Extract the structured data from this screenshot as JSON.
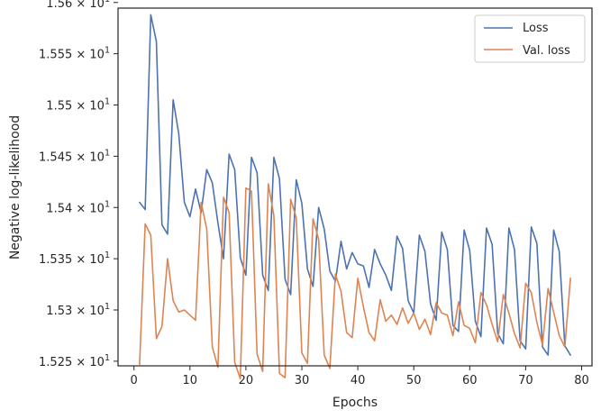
{
  "chart_data": {
    "type": "line",
    "xlabel": "Epochs",
    "ylabel": "Negative log-likelihood",
    "xlim": [
      -2.85,
      81.85
    ],
    "ylim": [
      15.2455,
      15.5945
    ],
    "x_ticks": [
      0,
      10,
      20,
      30,
      40,
      50,
      60,
      70,
      80
    ],
    "x_tick_labels": [
      "0",
      "10",
      "20",
      "30",
      "40",
      "50",
      "60",
      "70",
      "80"
    ],
    "y_ticks": [
      15.25,
      15.3,
      15.35,
      15.4,
      15.45,
      15.5,
      15.55,
      15.6
    ],
    "y_tick_mantissas": [
      "1.525",
      "1.53",
      "1.535",
      "1.54",
      "1.545",
      "1.55",
      "1.555",
      "1.56"
    ],
    "y_tick_base": "10",
    "y_tick_exponent": "1",
    "grid": false,
    "legend_position": "top-right",
    "x": [
      1,
      2,
      3,
      4,
      5,
      6,
      7,
      8,
      9,
      10,
      11,
      12,
      13,
      14,
      15,
      16,
      17,
      18,
      19,
      20,
      21,
      22,
      23,
      24,
      25,
      26,
      27,
      28,
      29,
      30,
      31,
      32,
      33,
      34,
      35,
      36,
      37,
      38,
      39,
      40,
      41,
      42,
      43,
      44,
      45,
      46,
      47,
      48,
      49,
      50,
      51,
      52,
      53,
      54,
      55,
      56,
      57,
      58,
      59,
      60,
      61,
      62,
      63,
      64,
      65,
      66,
      67,
      68,
      69,
      70,
      71,
      72,
      73,
      74,
      75,
      76,
      77,
      78
    ],
    "series": [
      {
        "name": "Loss",
        "color": "#4c72b0",
        "values": [
          15.405,
          15.398,
          15.588,
          15.562,
          15.383,
          15.374,
          15.505,
          15.472,
          15.405,
          15.391,
          15.418,
          15.395,
          15.437,
          15.424,
          15.385,
          15.35,
          15.452,
          15.437,
          15.351,
          15.334,
          15.449,
          15.434,
          15.334,
          15.319,
          15.449,
          15.428,
          15.33,
          15.315,
          15.427,
          15.404,
          15.34,
          15.323,
          15.4,
          15.379,
          15.338,
          15.328,
          15.367,
          15.34,
          15.356,
          15.345,
          15.343,
          15.322,
          15.359,
          15.345,
          15.334,
          15.319,
          15.372,
          15.36,
          15.309,
          15.297,
          15.373,
          15.357,
          15.306,
          15.29,
          15.376,
          15.359,
          15.285,
          15.279,
          15.378,
          15.358,
          15.289,
          15.274,
          15.38,
          15.364,
          15.277,
          15.267,
          15.38,
          15.359,
          15.27,
          15.262,
          15.381,
          15.365,
          15.264,
          15.256,
          15.378,
          15.357,
          15.265,
          15.256
        ]
      },
      {
        "name": "Val. loss",
        "color": "#dd8452",
        "values": [
          15.247,
          15.384,
          15.373,
          15.272,
          15.284,
          15.35,
          15.309,
          15.298,
          15.3,
          15.295,
          15.29,
          15.405,
          15.379,
          15.264,
          15.244,
          15.41,
          15.395,
          15.249,
          15.233,
          15.419,
          15.416,
          15.257,
          15.24,
          15.423,
          15.392,
          15.238,
          15.234,
          15.408,
          15.39,
          15.258,
          15.248,
          15.389,
          15.369,
          15.256,
          15.243,
          15.335,
          15.318,
          15.278,
          15.273,
          15.331,
          15.303,
          15.278,
          15.27,
          15.31,
          15.289,
          15.295,
          15.286,
          15.302,
          15.287,
          15.297,
          15.281,
          15.291,
          15.276,
          15.307,
          15.297,
          15.295,
          15.275,
          15.308,
          15.285,
          15.282,
          15.268,
          15.317,
          15.305,
          15.286,
          15.269,
          15.315,
          15.297,
          15.277,
          15.263,
          15.326,
          15.317,
          15.288,
          15.266,
          15.321,
          15.298,
          15.275,
          15.264,
          15.331
        ]
      }
    ]
  }
}
